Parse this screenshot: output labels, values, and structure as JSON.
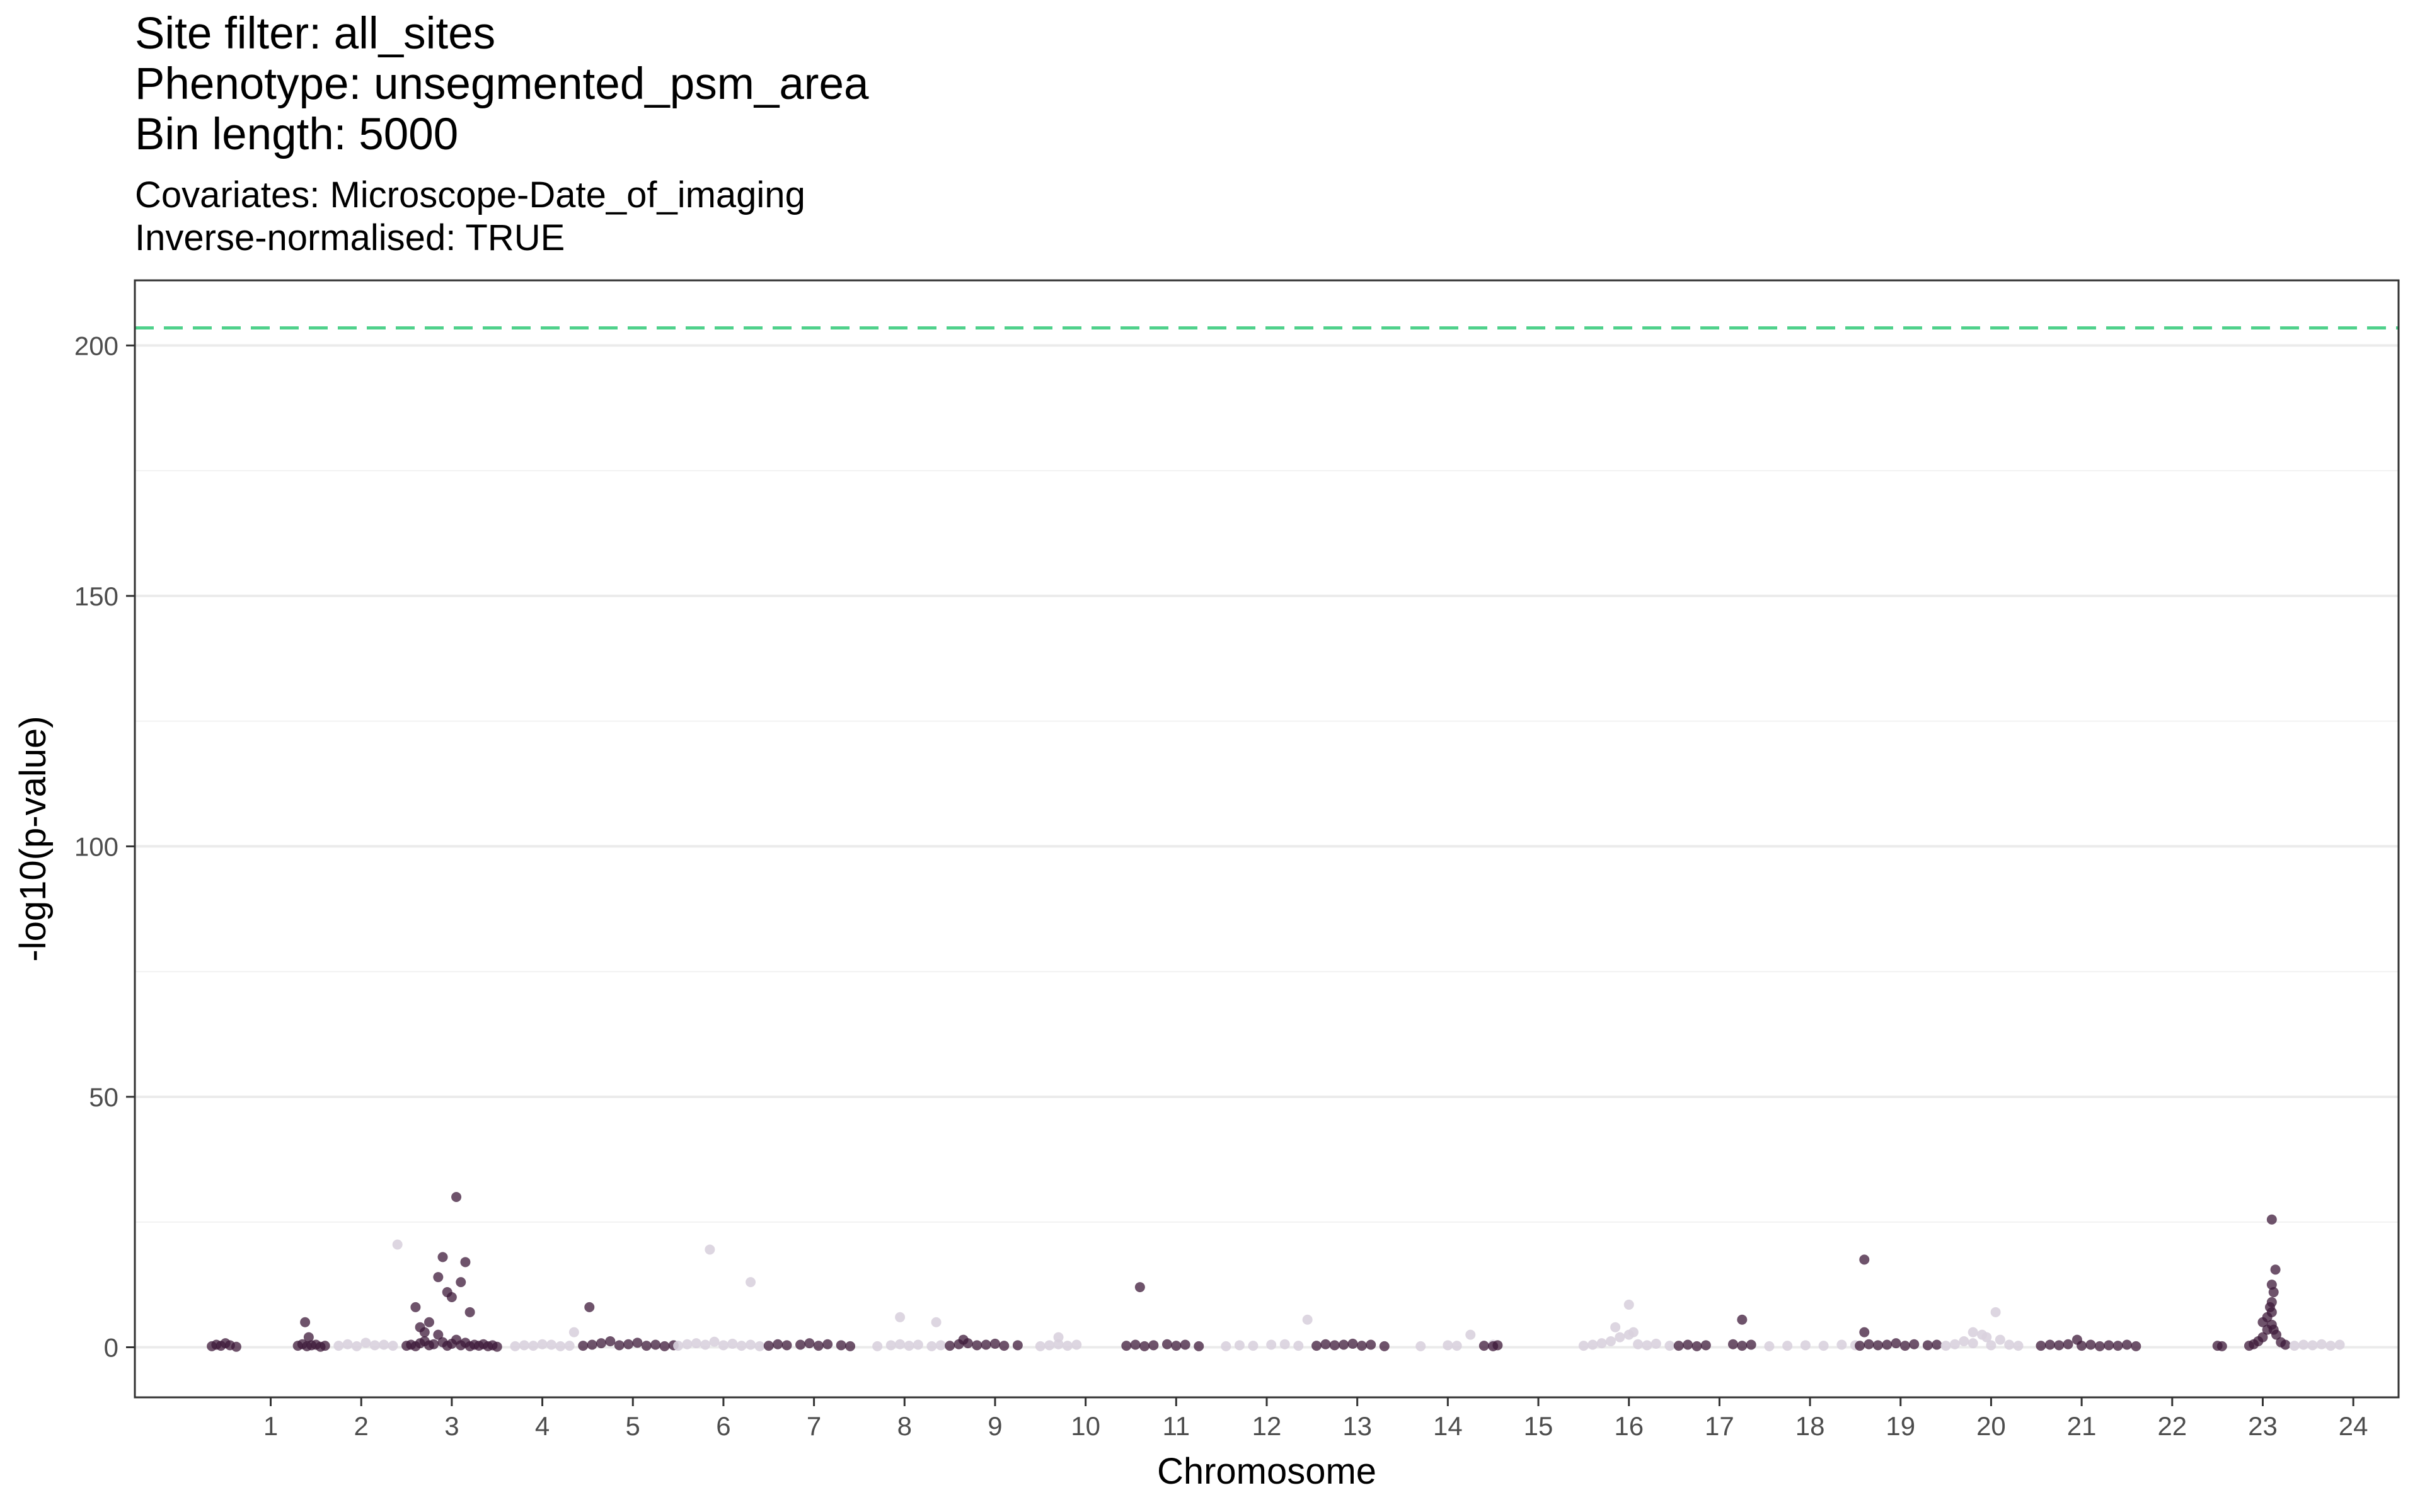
{
  "title_lines": [
    "Site filter: all_sites",
    "Phenotype: unsegmented_psm_area",
    "Bin length: 5000"
  ],
  "subtitle_lines": [
    "Covariates: Microscope-Date_of_imaging",
    "Inverse-normalised: TRUE"
  ],
  "chart_data": {
    "type": "scatter",
    "xlabel": "Chromosome",
    "ylabel": "-log10(p-value)",
    "ylim": [
      -10,
      213
    ],
    "y_ticks": [
      0,
      50,
      100,
      150,
      200
    ],
    "x_tick_labels": [
      "1",
      "2",
      "3",
      "4",
      "5",
      "6",
      "7",
      "8",
      "9",
      "10",
      "11",
      "12",
      "13",
      "14",
      "15",
      "16",
      "17",
      "18",
      "19",
      "20",
      "21",
      "22",
      "23",
      "24"
    ],
    "threshold": 203.5,
    "threshold_color": "#4fd18b",
    "grid": true,
    "colors": {
      "dark": "#3d1a3a",
      "light": "#d9d2de"
    },
    "series": [
      {
        "chromosome": "1",
        "color_group": "dark",
        "x": [
          0.35,
          0.4,
          0.45,
          0.5,
          0.55,
          0.62
        ],
        "y": [
          0.2,
          0.5,
          0.3,
          0.8,
          0.4,
          0.1
        ]
      },
      {
        "chromosome": "2",
        "color_group": "dark",
        "x": [
          1.3,
          1.35,
          1.4,
          1.45,
          1.5,
          1.55,
          1.6,
          1.38,
          1.42
        ],
        "y": [
          0.3,
          0.6,
          0.2,
          0.4,
          0.5,
          0.1,
          0.3,
          5,
          2
        ]
      },
      {
        "chromosome": "2",
        "color_group": "light",
        "x": [
          1.75,
          1.85,
          1.95,
          2.05,
          2.15,
          2.25,
          2.35,
          2.4
        ],
        "y": [
          0.3,
          0.6,
          0.2,
          0.9,
          0.4,
          0.5,
          0.3,
          20.5
        ]
      },
      {
        "chromosome": "3",
        "color_group": "dark",
        "x": [
          2.5,
          2.55,
          2.6,
          2.65,
          2.7,
          2.75,
          2.8,
          2.85,
          2.9,
          2.95,
          3.0,
          3.05,
          3.1,
          3.15,
          3.2,
          3.25,
          3.3,
          3.35,
          3.4,
          3.45,
          3.5,
          2.6,
          2.65,
          2.7,
          2.75,
          2.85,
          2.9,
          2.95,
          3.0,
          3.05,
          3.1,
          3.15,
          3.2
        ],
        "y": [
          0.3,
          0.5,
          0.2,
          0.8,
          1.2,
          0.4,
          0.6,
          2.5,
          1.0,
          0.3,
          0.7,
          1.5,
          0.4,
          0.9,
          0.2,
          0.5,
          0.3,
          0.6,
          0.2,
          0.4,
          0.1,
          8,
          4,
          3,
          5,
          14,
          18,
          11,
          10,
          30,
          13,
          17,
          7
        ]
      },
      {
        "chromosome": "4",
        "color_group": "light",
        "x": [
          3.7,
          3.8,
          3.9,
          4.0,
          4.1,
          4.2,
          4.3,
          4.35
        ],
        "y": [
          0.2,
          0.4,
          0.3,
          0.6,
          0.5,
          0.2,
          0.3,
          3
        ]
      },
      {
        "chromosome": "5",
        "color_group": "dark",
        "x": [
          4.45,
          4.55,
          4.65,
          4.75,
          4.85,
          4.95,
          5.05,
          5.15,
          5.25,
          5.35,
          5.45,
          4.52
        ],
        "y": [
          0.3,
          0.5,
          0.8,
          1.2,
          0.4,
          0.6,
          0.9,
          0.3,
          0.5,
          0.2,
          0.4,
          8
        ]
      },
      {
        "chromosome": "6",
        "color_group": "light",
        "x": [
          5.5,
          5.6,
          5.7,
          5.8,
          5.9,
          6.0,
          6.1,
          6.2,
          6.3,
          6.4,
          5.85,
          6.3
        ],
        "y": [
          0.3,
          0.6,
          0.8,
          0.5,
          1.1,
          0.4,
          0.7,
          0.3,
          0.5,
          0.2,
          19.5,
          13
        ]
      },
      {
        "chromosome": "7",
        "color_group": "dark",
        "x": [
          6.5,
          6.6,
          6.7,
          6.85,
          6.95,
          7.05,
          7.15,
          7.3,
          7.4
        ],
        "y": [
          0.3,
          0.6,
          0.4,
          0.5,
          0.8,
          0.3,
          0.6,
          0.4,
          0.2
        ]
      },
      {
        "chromosome": "8",
        "color_group": "light",
        "x": [
          7.7,
          7.85,
          7.95,
          8.05,
          8.15,
          8.3,
          8.4,
          7.95,
          8.35
        ],
        "y": [
          0.2,
          0.4,
          0.6,
          0.3,
          0.5,
          0.2,
          0.4,
          6,
          5
        ]
      },
      {
        "chromosome": "9",
        "color_group": "dark",
        "x": [
          8.5,
          8.6,
          8.7,
          8.8,
          8.9,
          9.0,
          9.1,
          9.25,
          8.65
        ],
        "y": [
          0.3,
          0.6,
          0.8,
          0.4,
          0.5,
          0.7,
          0.3,
          0.4,
          1.5
        ]
      },
      {
        "chromosome": "10",
        "color_group": "light",
        "x": [
          9.5,
          9.6,
          9.7,
          9.8,
          9.9,
          9.7
        ],
        "y": [
          0.2,
          0.4,
          0.6,
          0.3,
          0.5,
          2
        ]
      },
      {
        "chromosome": "11",
        "color_group": "dark",
        "x": [
          10.45,
          10.55,
          10.65,
          10.75,
          10.9,
          11.0,
          11.1,
          11.25,
          10.6
        ],
        "y": [
          0.3,
          0.5,
          0.2,
          0.4,
          0.6,
          0.3,
          0.5,
          0.2,
          12
        ]
      },
      {
        "chromosome": "12",
        "color_group": "light",
        "x": [
          11.55,
          11.7,
          11.85,
          12.05,
          12.2,
          12.35,
          12.45
        ],
        "y": [
          0.2,
          0.4,
          0.3,
          0.5,
          0.6,
          0.3,
          5.5
        ]
      },
      {
        "chromosome": "13",
        "color_group": "dark",
        "x": [
          12.55,
          12.65,
          12.75,
          12.85,
          12.95,
          13.05,
          13.15,
          13.3
        ],
        "y": [
          0.3,
          0.6,
          0.4,
          0.5,
          0.7,
          0.3,
          0.5,
          0.2
        ]
      },
      {
        "chromosome": "14",
        "color_group": "light",
        "x": [
          13.7,
          14.0,
          14.1,
          14.25,
          14.5
        ],
        "y": [
          0.2,
          0.4,
          0.3,
          2.5,
          0.5
        ]
      },
      {
        "chromosome": "15",
        "color_group": "dark",
        "x": [
          14.4,
          14.5,
          14.55
        ],
        "y": [
          0.3,
          0.2,
          0.4
        ]
      },
      {
        "chromosome": "16",
        "color_group": "light",
        "x": [
          15.5,
          15.6,
          15.7,
          15.8,
          15.9,
          16.0,
          16.1,
          16.2,
          16.3,
          16.45,
          15.85,
          16.0,
          16.05
        ],
        "y": [
          0.3,
          0.5,
          0.8,
          1.2,
          2.0,
          2.5,
          0.6,
          0.4,
          0.7,
          0.3,
          4,
          8.5,
          3
        ]
      },
      {
        "chromosome": "17",
        "color_group": "dark",
        "x": [
          16.55,
          16.65,
          16.75,
          16.85,
          17.15,
          17.25,
          17.35,
          17.25
        ],
        "y": [
          0.3,
          0.5,
          0.2,
          0.4,
          0.6,
          0.3,
          0.5,
          5.5
        ]
      },
      {
        "chromosome": "18",
        "color_group": "light",
        "x": [
          17.55,
          17.75,
          17.95,
          18.15,
          18.35,
          18.5
        ],
        "y": [
          0.2,
          0.3,
          0.4,
          0.3,
          0.5,
          0.4
        ]
      },
      {
        "chromosome": "19",
        "color_group": "dark",
        "x": [
          18.55,
          18.65,
          18.75,
          18.85,
          18.95,
          19.05,
          19.15,
          19.3,
          19.4,
          18.6,
          18.6
        ],
        "y": [
          0.3,
          0.6,
          0.4,
          0.5,
          0.8,
          0.3,
          0.6,
          0.4,
          0.5,
          17.5,
          3
        ]
      },
      {
        "chromosome": "20",
        "color_group": "light",
        "x": [
          19.5,
          19.6,
          19.7,
          19.8,
          19.9,
          20.0,
          20.1,
          20.2,
          20.3,
          19.8,
          19.95,
          20.05
        ],
        "y": [
          0.3,
          0.6,
          1.2,
          0.8,
          2.5,
          0.4,
          1.5,
          0.5,
          0.3,
          3,
          2,
          7
        ]
      },
      {
        "chromosome": "21",
        "color_group": "dark",
        "x": [
          20.55,
          20.65,
          20.75,
          20.85,
          21.0,
          21.1,
          21.2,
          21.3,
          21.4,
          21.5,
          21.6,
          20.95
        ],
        "y": [
          0.3,
          0.5,
          0.4,
          0.6,
          0.3,
          0.5,
          0.2,
          0.4,
          0.3,
          0.5,
          0.2,
          1.5
        ]
      },
      {
        "chromosome": "22",
        "color_group": "dark",
        "x": [
          22.5,
          22.55
        ],
        "y": [
          0.3,
          0.2
        ]
      },
      {
        "chromosome": "23",
        "color_group": "dark",
        "x": [
          22.85,
          22.9,
          22.95,
          23.0,
          23.05,
          23.1,
          23.15,
          23.2,
          23.25,
          23.0,
          23.05,
          23.1,
          23.1,
          23.12,
          23.14,
          23.1,
          23.12,
          23.08,
          23.1
        ],
        "y": [
          0.3,
          0.6,
          1.2,
          2.0,
          3.5,
          4.5,
          2.5,
          1.0,
          0.5,
          5,
          6,
          7,
          9,
          11,
          15.5,
          25.5,
          3.5,
          8,
          12.5
        ]
      },
      {
        "chromosome": "24",
        "color_group": "light",
        "x": [
          23.35,
          23.45,
          23.55,
          23.65,
          23.75,
          23.85
        ],
        "y": [
          0.3,
          0.5,
          0.4,
          0.6,
          0.3,
          0.5
        ]
      }
    ]
  }
}
